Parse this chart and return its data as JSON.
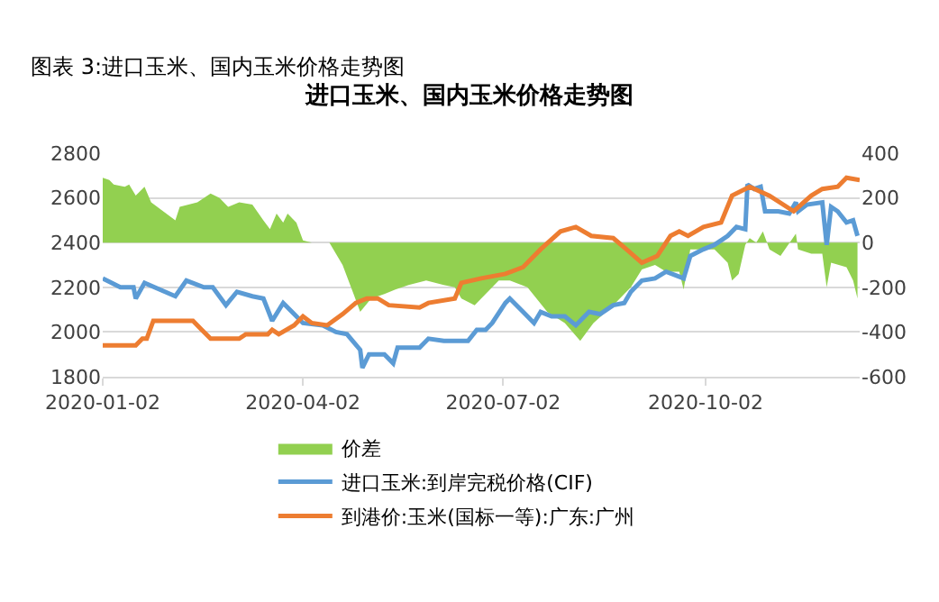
{
  "chart_data": {
    "type": "line",
    "title": "进口玉米、国内玉米价格走势图",
    "annotations": [
      "图表 3:进口玉米、国内玉米价格走势图"
    ],
    "xlim": [
      "2020-01-02",
      "2020-12-11"
    ],
    "xticks": [
      "2020-01-02",
      "2020-04-02",
      "2020-07-02",
      "2020-10-02"
    ],
    "ylim": [
      1800,
      2800
    ],
    "yticks": [
      1800,
      2000,
      2200,
      2400,
      2600,
      2800
    ],
    "y2lim": [
      -600,
      400
    ],
    "y2ticks": [
      -600,
      -400,
      -200,
      0,
      200,
      400
    ],
    "grid": "y",
    "legend": "bottom",
    "series": [
      {
        "name": "价差",
        "type": "area",
        "axis": "y2",
        "color": "#92d050",
        "x": [
          "2020-01-02",
          "2020-01-05",
          "2020-01-07",
          "2020-01-12",
          "2020-01-14",
          "2020-01-17",
          "2020-01-21",
          "2020-01-24",
          "2020-02-04",
          "2020-02-06",
          "2020-02-14",
          "2020-02-20",
          "2020-02-24",
          "2020-02-28",
          "2020-03-04",
          "2020-03-10",
          "2020-03-15",
          "2020-03-18",
          "2020-03-21",
          "2020-03-24",
          "2020-03-26",
          "2020-03-30",
          "2020-04-02",
          "2020-04-06",
          "2020-04-14",
          "2020-04-20",
          "2020-04-25",
          "2020-04-28",
          "2020-05-03",
          "2020-05-09",
          "2020-05-14",
          "2020-05-20",
          "2020-05-28",
          "2020-06-05",
          "2020-06-10",
          "2020-06-13",
          "2020-06-19",
          "2020-06-24",
          "2020-06-30",
          "2020-07-05",
          "2020-07-13",
          "2020-07-22",
          "2020-07-30",
          "2020-08-06",
          "2020-08-12",
          "2020-08-21",
          "2020-08-29",
          "2020-09-03",
          "2020-09-09",
          "2020-09-14",
          "2020-09-20",
          "2020-09-22",
          "2020-09-25",
          "2020-10-06",
          "2020-10-12",
          "2020-10-14",
          "2020-10-17",
          "2020-10-20",
          "2020-10-22",
          "2020-10-25",
          "2020-10-28",
          "2020-10-31",
          "2020-11-05",
          "2020-11-12",
          "2020-11-13",
          "2020-11-19",
          "2020-11-24",
          "2020-11-26",
          "2020-11-28",
          "2020-12-05",
          "2020-12-08",
          "2020-12-10"
        ],
        "values": [
          290,
          280,
          260,
          250,
          260,
          210,
          250,
          180,
          100,
          160,
          180,
          220,
          200,
          160,
          180,
          170,
          100,
          60,
          130,
          90,
          130,
          90,
          10,
          0,
          0,
          -100,
          -230,
          -310,
          -250,
          -230,
          -210,
          -190,
          -170,
          -190,
          -200,
          -250,
          -280,
          -230,
          -170,
          -170,
          -200,
          -310,
          -360,
          -440,
          -360,
          -280,
          -200,
          -120,
          -100,
          -130,
          -130,
          -210,
          -30,
          -30,
          -90,
          -170,
          -140,
          -10,
          20,
          0,
          50,
          -30,
          -60,
          40,
          -30,
          -50,
          -50,
          -200,
          -90,
          -110,
          -170,
          -250
        ]
      },
      {
        "name": "进口玉米:到岸完税价格(CIF)",
        "color": "#5b9bd5",
        "x": [
          "2020-01-02",
          "2020-01-10",
          "2020-01-16",
          "2020-01-17",
          "2020-01-21",
          "2020-02-04",
          "2020-02-09",
          "2020-02-17",
          "2020-02-21",
          "2020-02-27",
          "2020-03-03",
          "2020-03-10",
          "2020-03-15",
          "2020-03-19",
          "2020-03-24",
          "2020-03-29",
          "2020-04-02",
          "2020-04-11",
          "2020-04-17",
          "2020-04-22",
          "2020-04-28",
          "2020-04-29",
          "2020-05-02",
          "2020-05-09",
          "2020-05-13",
          "2020-05-15",
          "2020-05-25",
          "2020-05-29",
          "2020-06-05",
          "2020-06-16",
          "2020-06-20",
          "2020-06-24",
          "2020-06-27",
          "2020-07-03",
          "2020-07-05",
          "2020-07-11",
          "2020-07-16",
          "2020-07-19",
          "2020-07-24",
          "2020-07-30",
          "2020-08-04",
          "2020-08-10",
          "2020-08-15",
          "2020-08-21",
          "2020-08-26",
          "2020-08-29",
          "2020-09-03",
          "2020-09-09",
          "2020-09-14",
          "2020-09-22",
          "2020-09-25",
          "2020-10-01",
          "2020-10-06",
          "2020-10-12",
          "2020-10-16",
          "2020-10-20",
          "2020-10-21",
          "2020-10-24",
          "2020-10-27",
          "2020-10-29",
          "2020-11-04",
          "2020-11-09",
          "2020-11-12",
          "2020-11-13",
          "2020-11-17",
          "2020-11-24",
          "2020-11-26",
          "2020-11-28",
          "2020-12-01",
          "2020-12-05",
          "2020-12-08",
          "2020-12-10"
        ],
        "values": [
          2240,
          2200,
          2200,
          2150,
          2220,
          2160,
          2230,
          2200,
          2200,
          2120,
          2180,
          2160,
          2150,
          2050,
          2130,
          2080,
          2040,
          2030,
          2000,
          1990,
          1920,
          1840,
          1900,
          1900,
          1860,
          1930,
          1930,
          1970,
          1960,
          1960,
          2010,
          2010,
          2040,
          2130,
          2150,
          2090,
          2040,
          2090,
          2070,
          2070,
          2030,
          2090,
          2080,
          2120,
          2130,
          2180,
          2230,
          2240,
          2270,
          2240,
          2340,
          2370,
          2390,
          2430,
          2470,
          2460,
          2660,
          2640,
          2650,
          2540,
          2540,
          2530,
          2580,
          2540,
          2570,
          2580,
          2390,
          2560,
          2540,
          2490,
          2500,
          2430
        ]
      },
      {
        "name": "到港价:玉米(国标一等):广东:广州",
        "color": "#ed7d31",
        "x": [
          "2020-01-02",
          "2020-01-17",
          "2020-01-20",
          "2020-01-22",
          "2020-01-25",
          "2020-02-12",
          "2020-02-16",
          "2020-02-20",
          "2020-03-04",
          "2020-03-07",
          "2020-03-17",
          "2020-03-19",
          "2020-03-22",
          "2020-03-29",
          "2020-04-02",
          "2020-04-06",
          "2020-04-13",
          "2020-04-20",
          "2020-04-26",
          "2020-05-01",
          "2020-05-06",
          "2020-05-11",
          "2020-05-25",
          "2020-05-29",
          "2020-06-10",
          "2020-06-13",
          "2020-06-22",
          "2020-07-03",
          "2020-07-11",
          "2020-07-19",
          "2020-07-28",
          "2020-08-04",
          "2020-08-11",
          "2020-08-21",
          "2020-08-27",
          "2020-09-03",
          "2020-09-10",
          "2020-09-16",
          "2020-09-20",
          "2020-09-24",
          "2020-10-01",
          "2020-10-09",
          "2020-10-14",
          "2020-10-22",
          "2020-10-31",
          "2020-11-11",
          "2020-11-19",
          "2020-11-24",
          "2020-12-01",
          "2020-12-05",
          "2020-12-11"
        ],
        "values": [
          1940,
          1940,
          1970,
          1970,
          2050,
          2050,
          2010,
          1970,
          1970,
          1990,
          1990,
          2010,
          1990,
          2030,
          2070,
          2040,
          2030,
          2080,
          2130,
          2150,
          2150,
          2120,
          2110,
          2130,
          2150,
          2220,
          2240,
          2260,
          2290,
          2370,
          2450,
          2470,
          2430,
          2420,
          2370,
          2310,
          2340,
          2430,
          2450,
          2430,
          2470,
          2490,
          2610,
          2650,
          2610,
          2540,
          2610,
          2640,
          2650,
          2690,
          2680
        ]
      }
    ]
  }
}
